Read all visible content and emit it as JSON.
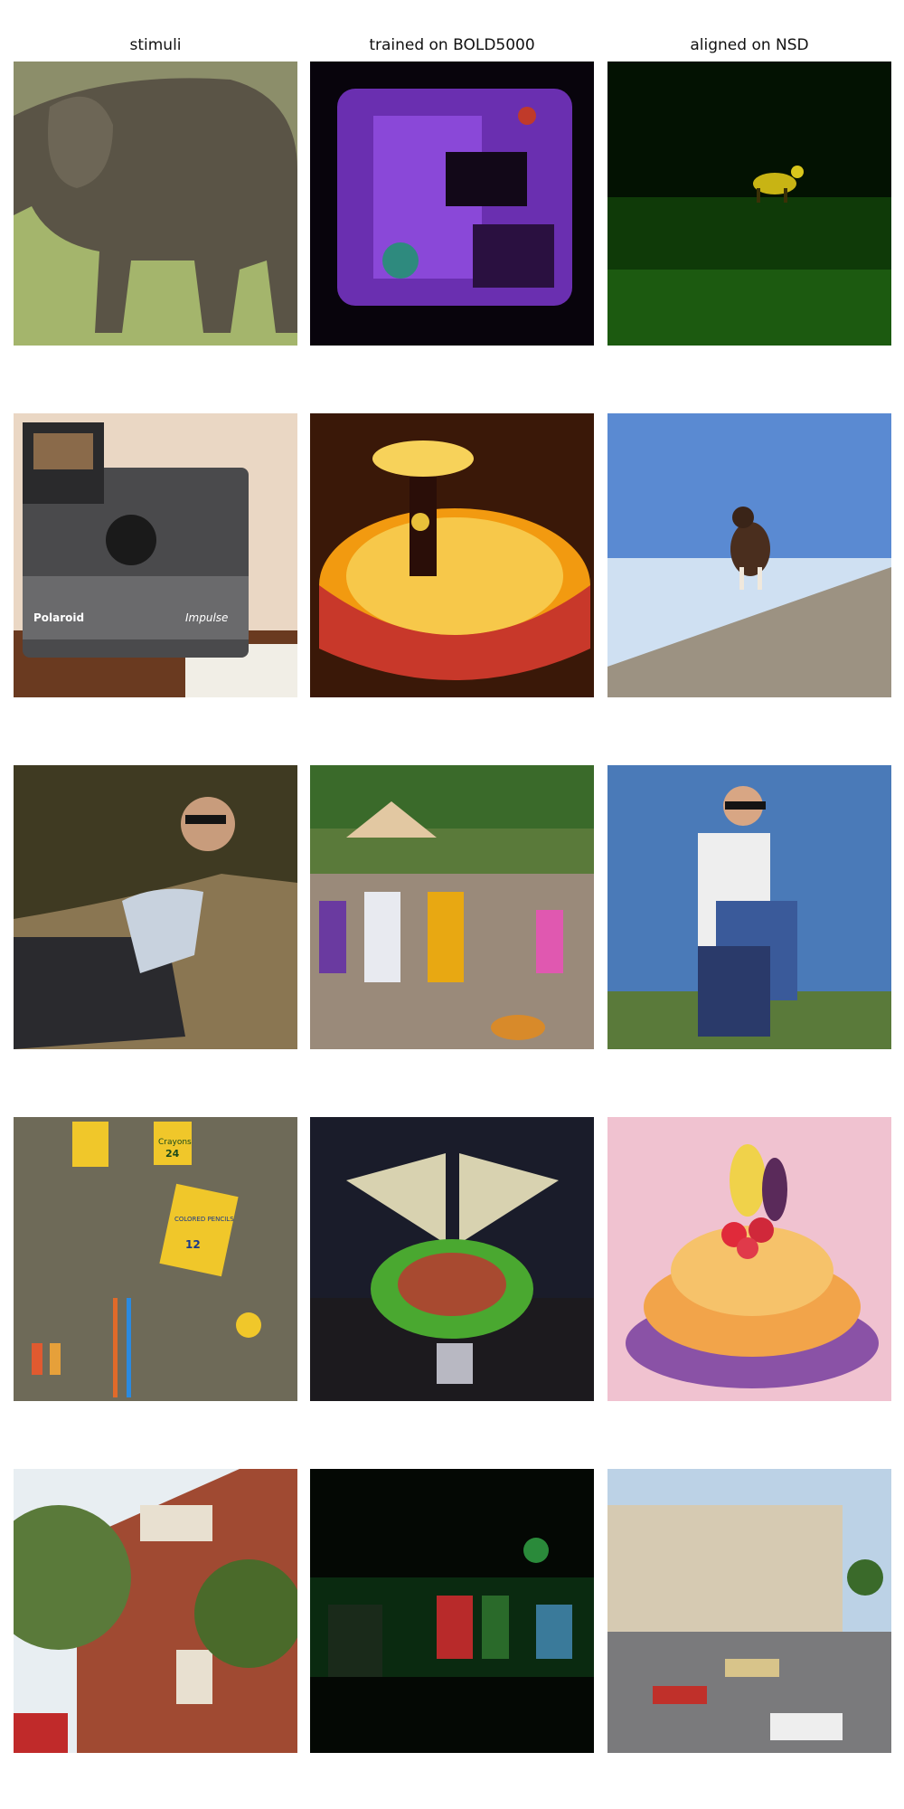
{
  "columns": [
    {
      "key": "stimuli",
      "label": "stimuli"
    },
    {
      "key": "bold5000",
      "label": "trained on BOLD5000"
    },
    {
      "key": "nsd",
      "label": "aligned on NSD"
    }
  ],
  "rows": [
    {
      "stimuli": "elephant on grass",
      "bold5000": "purple textured abstract",
      "nsd": "yellow dog in dark green field"
    },
    {
      "stimuli": "Polaroid Impulse camera",
      "bold5000": "glowing orange round table with figurine",
      "nsd": "dog on sloped hill under blue sky"
    },
    {
      "stimuli": "man in sunglasses on phone lying down",
      "bold5000": "crowd at outdoor food market",
      "nsd": "man in sunglasses holding robot figure"
    },
    {
      "stimuli": "crayons, markers and stationery",
      "bold5000": "green robotic machine on table",
      "nsd": "orange fruit cake with berries"
    },
    {
      "stimuli": "red brick building with trees and bus",
      "bold5000": "dark green-lit interior",
      "nsd": "street with trams from above"
    }
  ],
  "text_in_images": {
    "camera_brand": "Polaroid",
    "camera_model": "Impulse",
    "crayon_box_label": "Crayons",
    "crayon_box_count": "24",
    "colored_pencils_label": "COLORED PENCILS",
    "colored_pencils_count": "12"
  }
}
